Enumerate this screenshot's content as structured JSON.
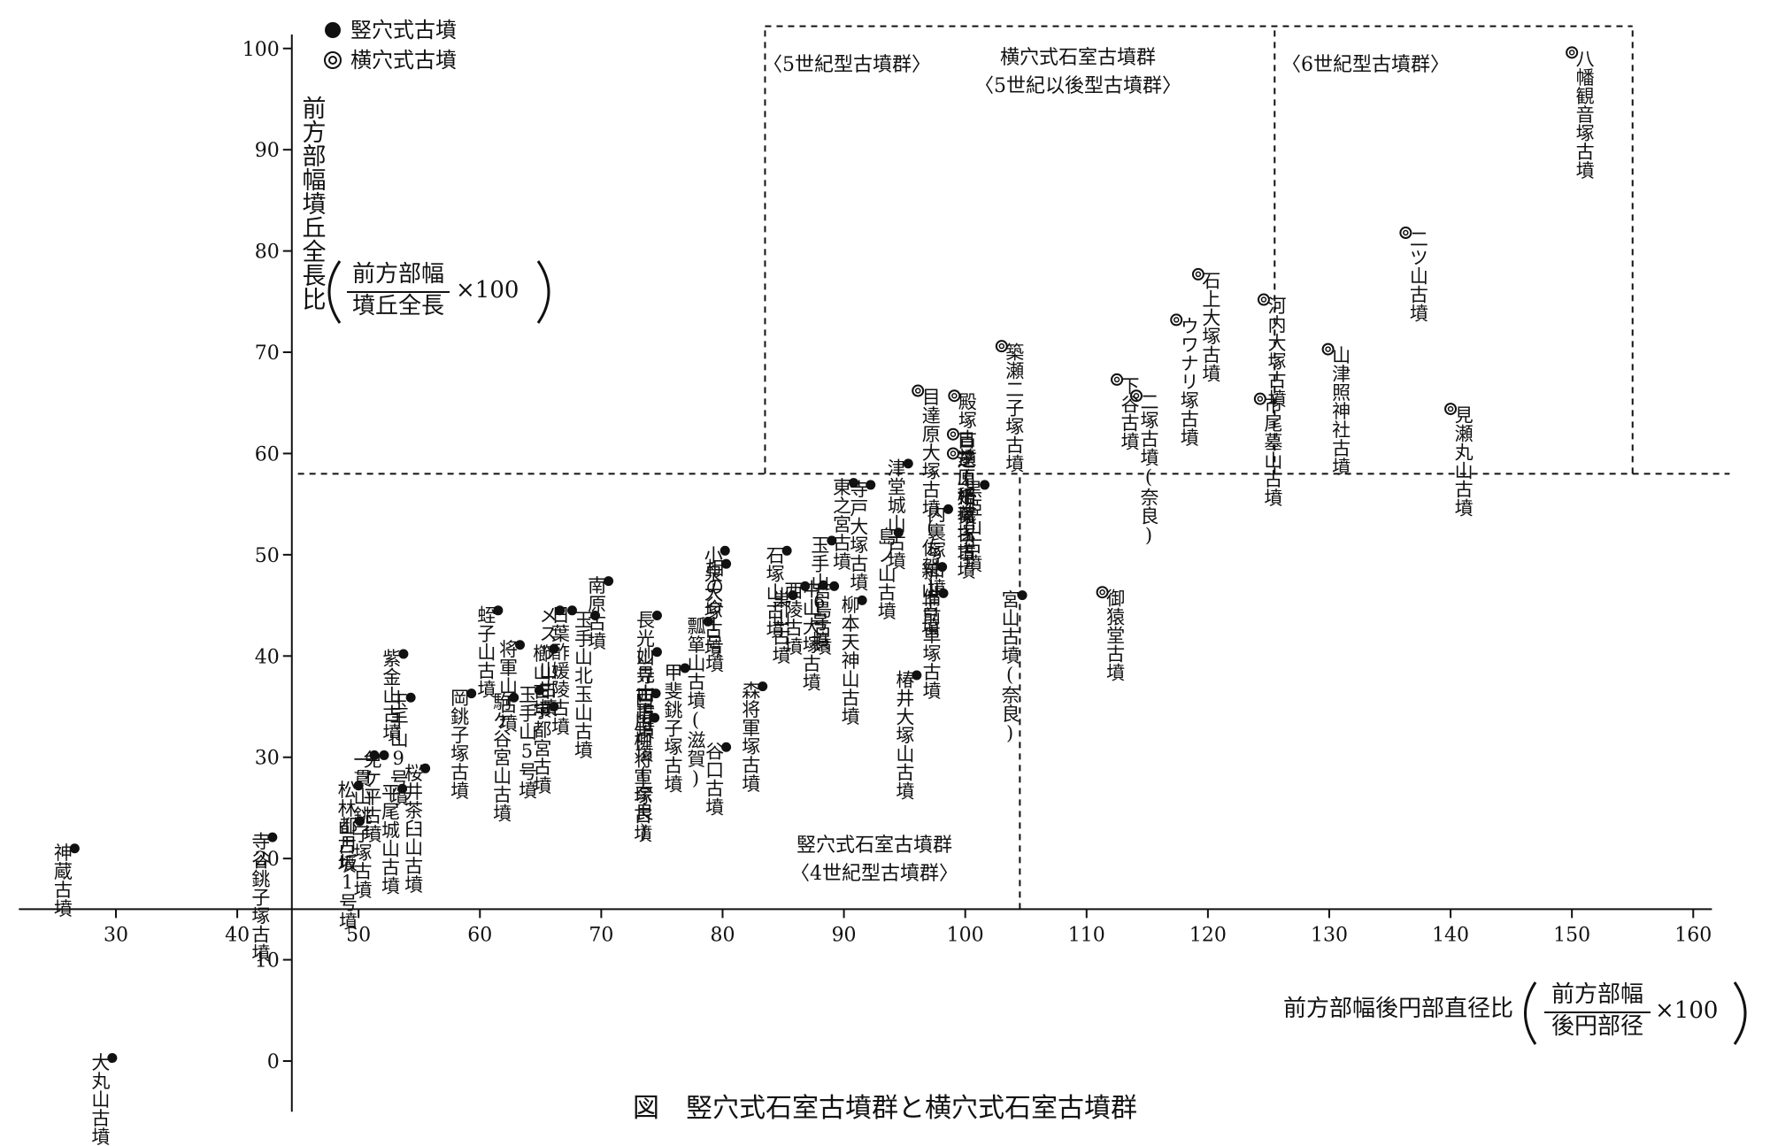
{
  "chart_data": {
    "type": "scatter",
    "title": "図　竪穴式石室古墳群と横穴式石室古墳群",
    "y_label": {
      "text": "前方部幅墳丘全長比",
      "numerator": "前方部幅",
      "denominator": "墳丘全長",
      "factor": "×100"
    },
    "x_label": {
      "text": "前方部幅後円部直径比",
      "numerator": "前方部幅",
      "denominator": "後円部径",
      "factor": "×100"
    },
    "xlim": [
      22,
      163
    ],
    "ylim": [
      -5,
      104
    ],
    "xticks": [
      30,
      40,
      50,
      60,
      70,
      80,
      90,
      100,
      110,
      120,
      130,
      140,
      150,
      160
    ],
    "yticks": [
      0,
      10,
      20,
      30,
      40,
      50,
      60,
      70,
      80,
      90,
      100
    ],
    "x_axis_at": 15,
    "y_axis_at": 44.5,
    "reference_lines": [
      {
        "x": [
          45,
          163
        ],
        "y": [
          58,
          58
        ]
      },
      {
        "x": [
          83.5,
          83.5
        ],
        "y": [
          58,
          102.2
        ]
      },
      {
        "x": [
          83.5,
          155
        ],
        "y": [
          102.2,
          102.2
        ]
      },
      {
        "x": [
          125.5,
          125.5
        ],
        "y": [
          58,
          102.2
        ]
      },
      {
        "x": [
          155,
          155
        ],
        "y": [
          58,
          102.2
        ]
      },
      {
        "x": [
          104.5,
          104.5
        ],
        "y": [
          15,
          58
        ]
      }
    ],
    "annotations": [
      "〈5世紀型古墳群〉",
      "横穴式石室古墳群",
      "〈5世紀以後型古墳群〉",
      "〈6世紀型古墳群〉",
      "竪穴式石室古墳群",
      "〈4世紀型古墳群〉"
    ],
    "series": [
      {
        "name": "竪穴式古墳",
        "marker": "filled",
        "color": "#111111",
        "labels": [
          "神蔵古墳",
          "大丸山古墳",
          "寺谷銚子塚古墳",
          "都月坂1号墳",
          "松林山古墳",
          "一貫山銚子塚古墳",
          "免ケ平古墳",
          "紫金山古墳",
          "玉手山9号墳",
          "平尾城山古墳",
          "桜井茶臼山古墳",
          "岡銚子塚古墳",
          "蛭子山古墳",
          "将軍山古墳",
          "駒ケ谷宮山古墳",
          "玉手山5号墳",
          "宇都宮古墳",
          "櫛山古墳",
          "メスリ山古墳",
          "日葉酢媛陵古墳",
          "南原古墳",
          "玉手山北玉山古墳",
          "長光山寺古墳",
          "妙見山古墳",
          "西山古墳(奈良)",
          "川柳将軍塚古墳",
          "甲斐銚子塚古墳",
          "瓢箪山古墳(滋賀)",
          "小泉大塚古墳",
          "相の谷1号墳",
          "谷口古墳",
          "石塚山古墳",
          "森将軍塚古墳",
          "巣山古墳",
          "西陵古墳",
          "中山大塚古墳",
          "玉手山6号墳",
          "吉島古墳",
          "東之宮古墳",
          "寺戸大塚古墳",
          "津堂城山古墳",
          "柳本天神山古墳",
          "島ノ山古墳",
          "内裏塚古墳",
          "新山古墳",
          "備前車塚古墳",
          "椿井大塚山古墳",
          "黒姫山古墳",
          "宮山古墳(奈良)"
        ],
        "x": [
          26.6,
          29.7,
          42.9,
          50.1,
          50.0,
          51.3,
          52.1,
          53.7,
          54.3,
          53.6,
          55.5,
          59.3,
          61.5,
          63.3,
          62.8,
          64.9,
          66.1,
          66.1,
          66.6,
          67.6,
          70.6,
          69.5,
          74.6,
          74.6,
          74.5,
          74.4,
          76.9,
          78.8,
          80.2,
          80.3,
          80.3,
          85.3,
          83.3,
          85.8,
          86.8,
          88.3,
          89.0,
          89.2,
          90.8,
          92.2,
          95.3,
          91.5,
          94.5,
          98.6,
          98.1,
          98.2,
          96.0,
          101.6,
          104.7
        ],
        "y": [
          21.0,
          0.3,
          22.1,
          23.7,
          27.2,
          30.2,
          30.2,
          40.2,
          35.9,
          26.9,
          28.9,
          36.3,
          44.5,
          41.1,
          35.9,
          36.6,
          35.0,
          40.7,
          44.5,
          44.5,
          47.4,
          44.0,
          44.0,
          40.4,
          36.3,
          33.9,
          38.8,
          43.4,
          50.4,
          49.1,
          31.0,
          50.4,
          37.0,
          46.0,
          46.9,
          47.0,
          51.4,
          46.9,
          57.1,
          56.9,
          59.0,
          45.5,
          52.2,
          54.5,
          48.8,
          46.2,
          38.1,
          56.9,
          46.0
        ]
      },
      {
        "name": "横穴式古墳",
        "marker": "open",
        "color": "#111111",
        "labels": [
          "八幡観音塚古墳",
          "二ツ山古墳",
          "見瀬丸山古墳",
          "山津照神社古墳",
          "河内大塚古墳",
          "市尾墓山古墳",
          "石上大塚古墳",
          "ウワナリ塚古墳",
          "二塚古墳(奈良)",
          "下谷古墳",
          "御猿堂古墳",
          "築瀬二子塚古墳",
          "目達原稲荷塚古墳",
          "殿塚古墳(千葉)",
          "目達原大塚古墳(佐賀)",
          "芝山姫塚古墳"
        ],
        "x": [
          150.0,
          136.3,
          140.0,
          129.9,
          124.6,
          124.3,
          119.2,
          117.4,
          114.1,
          112.5,
          111.3,
          103.0,
          99.0,
          99.1,
          96.1,
          99.0
        ],
        "y": [
          99.6,
          81.8,
          64.4,
          70.3,
          75.2,
          65.4,
          77.7,
          73.2,
          65.7,
          67.3,
          46.3,
          70.6,
          61.9,
          65.7,
          66.2,
          60.0
        ]
      }
    ]
  }
}
